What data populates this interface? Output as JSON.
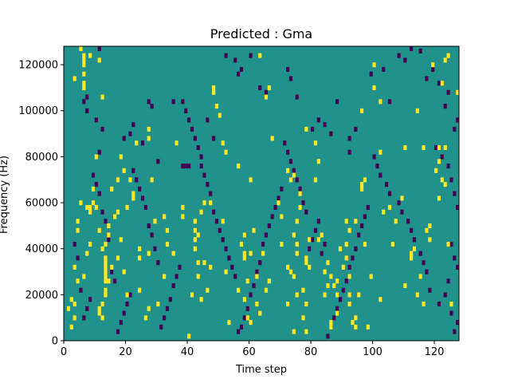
{
  "chart_data": {
    "type": "heatmap",
    "title": "Predicted : Gma",
    "xlabel": "Time step",
    "ylabel": "Frequency (Hz)",
    "xlim": [
      0,
      128
    ],
    "ylim": [
      0,
      128000
    ],
    "x_ticks": [
      0,
      20,
      40,
      60,
      80,
      100,
      120
    ],
    "x_tick_labels": [
      "0",
      "20",
      "40",
      "60",
      "80",
      "100",
      "120"
    ],
    "y_ticks": [
      0,
      20000,
      40000,
      60000,
      80000,
      100000,
      120000
    ],
    "y_tick_labels": [
      "0",
      "20000",
      "40000",
      "60000",
      "80000",
      "100000",
      "120000"
    ],
    "bin_size_hz": 2000,
    "colormap": {
      "background": "#21918c",
      "high": "#fde725",
      "low": "#440154"
    },
    "grid": false,
    "legend": "none",
    "high_cells": [
      [
        5,
        128000
      ],
      [
        6,
        124000
      ],
      [
        6,
        122000
      ],
      [
        6,
        120000
      ],
      [
        6,
        116000
      ],
      [
        6,
        112000
      ],
      [
        6,
        110000
      ],
      [
        8,
        124000
      ],
      [
        11,
        122000
      ],
      [
        12,
        106000
      ],
      [
        3,
        114000
      ],
      [
        2,
        6000
      ],
      [
        3,
        10000
      ],
      [
        3,
        16000
      ],
      [
        4,
        26000
      ],
      [
        4,
        52000
      ],
      [
        7,
        58000
      ],
      [
        8,
        58000
      ],
      [
        8,
        56000
      ],
      [
        9,
        60000
      ],
      [
        10,
        80000
      ],
      [
        11,
        12000
      ],
      [
        11,
        14000
      ],
      [
        12,
        10000
      ],
      [
        12,
        16000
      ],
      [
        13,
        20000
      ],
      [
        13,
        22000
      ],
      [
        13,
        26000
      ],
      [
        13,
        28000
      ],
      [
        13,
        30000
      ],
      [
        13,
        32000
      ],
      [
        13,
        34000
      ],
      [
        13,
        36000
      ],
      [
        12,
        40000
      ],
      [
        13,
        42000
      ],
      [
        13,
        20000
      ],
      [
        14,
        46000
      ],
      [
        14,
        50000
      ],
      [
        15,
        66000
      ],
      [
        18,
        80000
      ],
      [
        17,
        70000
      ],
      [
        17,
        56000
      ],
      [
        19,
        30000
      ],
      [
        20,
        20000
      ],
      [
        22,
        62000
      ],
      [
        22,
        64000
      ],
      [
        23,
        86000
      ],
      [
        24,
        40000
      ],
      [
        24,
        36000
      ],
      [
        26,
        10000
      ],
      [
        27,
        88000
      ],
      [
        27,
        92000
      ],
      [
        28,
        70000
      ],
      [
        27,
        14000
      ],
      [
        30,
        16000
      ],
      [
        32,
        28000
      ],
      [
        33,
        42000
      ],
      [
        36,
        86000
      ],
      [
        38,
        54000
      ],
      [
        38,
        58000
      ],
      [
        40,
        2000
      ],
      [
        41,
        20000
      ],
      [
        42,
        40000
      ],
      [
        42,
        44000
      ],
      [
        42,
        48000
      ],
      [
        42,
        52000
      ],
      [
        43,
        28000
      ],
      [
        43,
        34000
      ],
      [
        43,
        46000
      ],
      [
        44,
        56000
      ],
      [
        44,
        18000
      ],
      [
        46,
        22000
      ],
      [
        47,
        32000
      ],
      [
        48,
        108000
      ],
      [
        48,
        110000
      ],
      [
        49,
        102000
      ],
      [
        50,
        98000
      ],
      [
        51,
        86000
      ],
      [
        52,
        82000
      ],
      [
        52,
        30000
      ],
      [
        53,
        8000
      ],
      [
        51,
        52000
      ],
      [
        56,
        76000
      ],
      [
        58,
        38000
      ],
      [
        58,
        36000
      ],
      [
        59,
        26000
      ],
      [
        58,
        18000
      ],
      [
        59,
        10000
      ],
      [
        60,
        70000
      ],
      [
        60,
        8000
      ],
      [
        63,
        124000
      ],
      [
        65,
        106000
      ],
      [
        66,
        110000
      ],
      [
        67,
        88000
      ],
      [
        70,
        42000
      ],
      [
        72,
        74000
      ],
      [
        73,
        70000
      ],
      [
        74,
        72000
      ],
      [
        74,
        28000
      ],
      [
        75,
        20000
      ],
      [
        76,
        58000
      ],
      [
        76,
        64000
      ],
      [
        78,
        92000
      ],
      [
        78,
        34000
      ],
      [
        78,
        36000
      ],
      [
        79,
        44000
      ],
      [
        81,
        86000
      ],
      [
        81,
        70000
      ],
      [
        82,
        78000
      ],
      [
        83,
        46000
      ],
      [
        84,
        30000
      ],
      [
        85,
        24000
      ],
      [
        86,
        28000
      ],
      [
        86,
        8000
      ],
      [
        86,
        6000
      ],
      [
        87,
        24000
      ],
      [
        88,
        20000
      ],
      [
        88,
        12000
      ],
      [
        89,
        40000
      ],
      [
        90,
        32000
      ],
      [
        91,
        36000
      ],
      [
        91,
        52000
      ],
      [
        92,
        48000
      ],
      [
        92,
        20000
      ],
      [
        92,
        16000
      ],
      [
        93,
        8000
      ],
      [
        94,
        10000
      ],
      [
        94,
        6000
      ],
      [
        95,
        20000
      ],
      [
        96,
        66000
      ],
      [
        96,
        68000
      ],
      [
        97,
        70000
      ],
      [
        97,
        42000
      ],
      [
        98,
        6000
      ],
      [
        99,
        28000
      ],
      [
        100,
        120000
      ],
      [
        100,
        110000
      ],
      [
        102,
        104000
      ],
      [
        102,
        82000
      ],
      [
        102,
        18000
      ],
      [
        103,
        56000
      ],
      [
        105,
        58000
      ],
      [
        106,
        42000
      ],
      [
        107,
        52000
      ],
      [
        109,
        62000
      ],
      [
        110,
        84000
      ],
      [
        112,
        38000
      ],
      [
        112,
        36000
      ],
      [
        113,
        40000
      ],
      [
        114,
        100000
      ],
      [
        115,
        28000
      ],
      [
        116,
        84000
      ],
      [
        118,
        44000
      ],
      [
        119,
        120000
      ],
      [
        120,
        74000
      ],
      [
        121,
        78000
      ],
      [
        121,
        84000
      ],
      [
        122,
        112000
      ],
      [
        122,
        70000
      ],
      [
        123,
        84000
      ],
      [
        123,
        68000
      ],
      [
        124,
        42000
      ],
      [
        125,
        16000
      ],
      [
        127,
        108000
      ],
      [
        128,
        6000
      ],
      [
        114,
        20000
      ],
      [
        118,
        50000
      ],
      [
        121,
        62000
      ],
      [
        124,
        124000
      ],
      [
        123,
        122000
      ],
      [
        116,
        16000
      ],
      [
        110,
        24000
      ],
      [
        117,
        48000
      ],
      [
        96,
        100000
      ],
      [
        91,
        42000
      ],
      [
        94,
        52000
      ],
      [
        92,
        28000
      ],
      [
        75,
        52000
      ],
      [
        77,
        22000
      ],
      [
        78,
        16000
      ],
      [
        79,
        32000
      ],
      [
        82,
        44000
      ],
      [
        84,
        20000
      ],
      [
        85,
        34000
      ],
      [
        88,
        26000
      ],
      [
        69,
        60000
      ],
      [
        70,
        54000
      ],
      [
        72,
        32000
      ],
      [
        73,
        30000
      ],
      [
        74,
        46000
      ],
      [
        75,
        42000
      ],
      [
        75,
        38000
      ],
      [
        72,
        16000
      ],
      [
        74,
        4000
      ],
      [
        77,
        10000
      ],
      [
        78,
        4000
      ],
      [
        62,
        28000
      ],
      [
        64,
        38000
      ],
      [
        65,
        22000
      ],
      [
        66,
        26000
      ],
      [
        63,
        12000
      ],
      [
        62,
        16000
      ],
      [
        56,
        22000
      ],
      [
        57,
        42000
      ],
      [
        58,
        46000
      ],
      [
        60,
        38000
      ],
      [
        61,
        48000
      ],
      [
        45,
        60000
      ],
      [
        47,
        60000
      ],
      [
        45,
        34000
      ],
      [
        35,
        38000
      ],
      [
        33,
        48000
      ],
      [
        32,
        54000
      ],
      [
        29,
        52000
      ],
      [
        27,
        38000
      ],
      [
        24,
        22000
      ],
      [
        21,
        70000
      ],
      [
        20,
        58000
      ],
      [
        19,
        74000
      ],
      [
        18,
        44000
      ],
      [
        17,
        36000
      ],
      [
        16,
        54000
      ],
      [
        15,
        32000
      ],
      [
        14,
        26000
      ],
      [
        11,
        48000
      ],
      [
        10,
        58000
      ],
      [
        9,
        66000
      ],
      [
        8,
        42000
      ],
      [
        7,
        38000
      ],
      [
        6,
        28000
      ],
      [
        5,
        60000
      ],
      [
        4,
        48000
      ],
      [
        3,
        32000
      ],
      [
        2,
        18000
      ],
      [
        1,
        14000
      ]
    ],
    "low_cells": [
      [
        11,
        128000
      ],
      [
        7,
        106000
      ],
      [
        6,
        104000
      ],
      [
        7,
        100000
      ],
      [
        10,
        96000
      ],
      [
        11,
        82000
      ],
      [
        12,
        92000
      ],
      [
        19,
        88000
      ],
      [
        21,
        90000
      ],
      [
        22,
        94000
      ],
      [
        25,
        86000
      ],
      [
        27,
        104000
      ],
      [
        28,
        102000
      ],
      [
        30,
        78000
      ],
      [
        35,
        104000
      ],
      [
        38,
        76000
      ],
      [
        39,
        76000
      ],
      [
        40,
        76000
      ],
      [
        44,
        76000
      ],
      [
        46,
        96000
      ],
      [
        48,
        88000
      ],
      [
        52,
        124000
      ],
      [
        55,
        122000
      ],
      [
        56,
        116000
      ],
      [
        57,
        118000
      ],
      [
        60,
        124000
      ],
      [
        63,
        110000
      ],
      [
        65,
        108000
      ],
      [
        72,
        118000
      ],
      [
        73,
        114000
      ],
      [
        75,
        106000
      ],
      [
        80,
        92000
      ],
      [
        82,
        96000
      ],
      [
        84,
        94000
      ],
      [
        86,
        90000
      ],
      [
        88,
        104000
      ],
      [
        92,
        82000
      ],
      [
        92,
        88000
      ],
      [
        94,
        92000
      ],
      [
        96,
        100000
      ],
      [
        99,
        116000
      ],
      [
        100,
        110000
      ],
      [
        103,
        118000
      ],
      [
        105,
        104000
      ],
      [
        108,
        124000
      ],
      [
        110,
        122000
      ],
      [
        112,
        128000
      ],
      [
        115,
        126000
      ],
      [
        117,
        114000
      ],
      [
        119,
        118000
      ],
      [
        121,
        112000
      ],
      [
        123,
        102000
      ],
      [
        124,
        108000
      ],
      [
        126,
        92000
      ],
      [
        127,
        96000
      ],
      [
        120,
        84000
      ],
      [
        122,
        80000
      ],
      [
        124,
        76000
      ],
      [
        125,
        70000
      ],
      [
        126,
        64000
      ],
      [
        127,
        58000
      ],
      [
        125,
        42000
      ],
      [
        126,
        36000
      ],
      [
        127,
        32000
      ],
      [
        124,
        26000
      ],
      [
        123,
        20000
      ],
      [
        125,
        12000
      ],
      [
        127,
        8000
      ],
      [
        126,
        4000
      ],
      [
        121,
        16000
      ],
      [
        118,
        22000
      ],
      [
        117,
        30000
      ],
      [
        116,
        34000
      ],
      [
        115,
        38000
      ],
      [
        113,
        44000
      ],
      [
        112,
        48000
      ],
      [
        111,
        52000
      ],
      [
        109,
        56000
      ],
      [
        108,
        60000
      ],
      [
        105,
        64000
      ],
      [
        104,
        68000
      ],
      [
        102,
        72000
      ],
      [
        101,
        76000
      ],
      [
        100,
        80000
      ],
      [
        98,
        58000
      ],
      [
        97,
        54000
      ],
      [
        96,
        50000
      ],
      [
        95,
        46000
      ],
      [
        94,
        40000
      ],
      [
        93,
        36000
      ],
      [
        92,
        32000
      ],
      [
        91,
        26000
      ],
      [
        90,
        22000
      ],
      [
        89,
        18000
      ],
      [
        88,
        14000
      ],
      [
        87,
        10000
      ],
      [
        86,
        6000
      ],
      [
        85,
        2000
      ],
      [
        84,
        42000
      ],
      [
        83,
        38000
      ],
      [
        82,
        52000
      ],
      [
        81,
        48000
      ],
      [
        80,
        44000
      ],
      [
        79,
        40000
      ],
      [
        78,
        56000
      ],
      [
        77,
        60000
      ],
      [
        76,
        66000
      ],
      [
        75,
        70000
      ],
      [
        74,
        74000
      ],
      [
        73,
        78000
      ],
      [
        72,
        82000
      ],
      [
        71,
        86000
      ],
      [
        70,
        66000
      ],
      [
        69,
        62000
      ],
      [
        68,
        58000
      ],
      [
        67,
        54000
      ],
      [
        66,
        50000
      ],
      [
        65,
        46000
      ],
      [
        64,
        42000
      ],
      [
        63,
        34000
      ],
      [
        62,
        30000
      ],
      [
        61,
        24000
      ],
      [
        60,
        20000
      ],
      [
        59,
        14000
      ],
      [
        58,
        10000
      ],
      [
        57,
        6000
      ],
      [
        56,
        4000
      ],
      [
        55,
        28000
      ],
      [
        54,
        32000
      ],
      [
        53,
        36000
      ],
      [
        52,
        40000
      ],
      [
        51,
        44000
      ],
      [
        50,
        48000
      ],
      [
        49,
        52000
      ],
      [
        48,
        56000
      ],
      [
        47,
        64000
      ],
      [
        46,
        68000
      ],
      [
        45,
        72000
      ],
      [
        44,
        80000
      ],
      [
        43,
        84000
      ],
      [
        42,
        88000
      ],
      [
        41,
        92000
      ],
      [
        40,
        96000
      ],
      [
        39,
        100000
      ],
      [
        38,
        104000
      ],
      [
        37,
        32000
      ],
      [
        36,
        28000
      ],
      [
        35,
        24000
      ],
      [
        34,
        18000
      ],
      [
        33,
        14000
      ],
      [
        32,
        10000
      ],
      [
        31,
        6000
      ],
      [
        30,
        34000
      ],
      [
        29,
        40000
      ],
      [
        28,
        46000
      ],
      [
        27,
        50000
      ],
      [
        26,
        58000
      ],
      [
        25,
        62000
      ],
      [
        24,
        66000
      ],
      [
        23,
        70000
      ],
      [
        22,
        74000
      ],
      [
        21,
        20000
      ],
      [
        20,
        16000
      ],
      [
        19,
        12000
      ],
      [
        18,
        8000
      ],
      [
        17,
        4000
      ],
      [
        16,
        26000
      ],
      [
        15,
        30000
      ],
      [
        14,
        44000
      ],
      [
        13,
        52000
      ],
      [
        12,
        56000
      ],
      [
        11,
        64000
      ],
      [
        10,
        68000
      ],
      [
        9,
        72000
      ],
      [
        8,
        18000
      ],
      [
        7,
        14000
      ],
      [
        6,
        10000
      ],
      [
        5,
        22000
      ],
      [
        4,
        36000
      ],
      [
        3,
        42000
      ]
    ]
  }
}
